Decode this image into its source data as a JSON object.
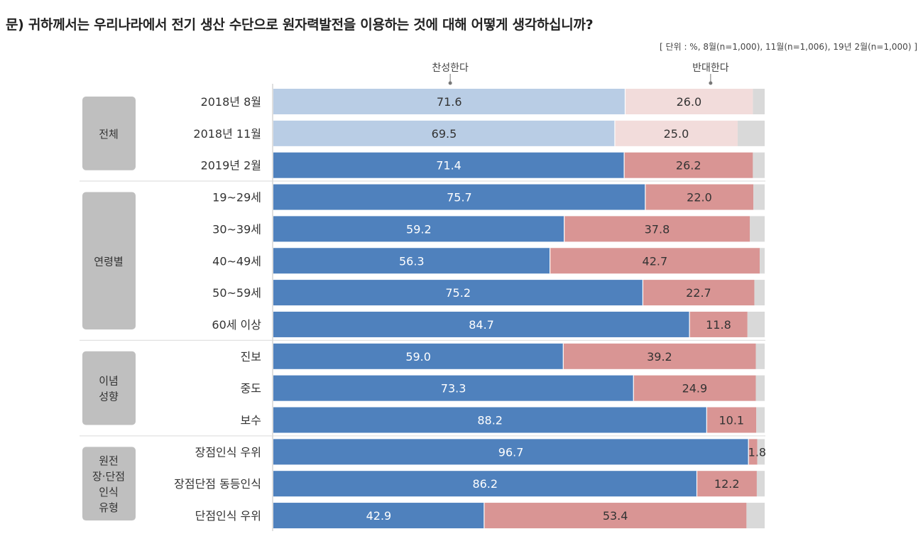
{
  "title": "문) 귀하께서는 우리나라에서 전기 생산 수단으로 원자력발전을 이용하는 것에 대해 어떻게 생각하십니까?",
  "unit_note": "[ 단위 : %, 8월(n=1,000), 11월(n=1,006), 19년 2월(n=1,000) ]",
  "colors": {
    "favor": "#4f81bd",
    "oppose": "#d99594",
    "favor_light": "#b9cde5",
    "oppose_light": "#f2dcdb",
    "remainder": "#d9d9d9",
    "group_box": "#bfbfbf"
  },
  "chart_data": {
    "type": "bar",
    "orientation": "horizontal",
    "stacked": true,
    "xlim": [
      0,
      100
    ],
    "legend": [
      "찬성한다",
      "반대한다"
    ],
    "groups": [
      {
        "label": [
          "전체"
        ],
        "rows": [
          {
            "label": "2018년 8월",
            "favor": 71.6,
            "oppose": 26.0,
            "light": true
          },
          {
            "label": "2018년 11월",
            "favor": 69.5,
            "oppose": 25.0,
            "light": true
          },
          {
            "label": "2019년 2월",
            "favor": 71.4,
            "oppose": 26.2,
            "light": false
          }
        ]
      },
      {
        "label": [
          "연령별"
        ],
        "rows": [
          {
            "label": "19~29세",
            "favor": 75.7,
            "oppose": 22.0,
            "light": false
          },
          {
            "label": "30~39세",
            "favor": 59.2,
            "oppose": 37.8,
            "light": false
          },
          {
            "label": "40~49세",
            "favor": 56.3,
            "oppose": 42.7,
            "light": false
          },
          {
            "label": "50~59세",
            "favor": 75.2,
            "oppose": 22.7,
            "light": false
          },
          {
            "label": "60세 이상",
            "favor": 84.7,
            "oppose": 11.8,
            "light": false
          }
        ]
      },
      {
        "label": [
          "이념",
          "성향"
        ],
        "rows": [
          {
            "label": "진보",
            "favor": 59.0,
            "oppose": 39.2,
            "light": false
          },
          {
            "label": "중도",
            "favor": 73.3,
            "oppose": 24.9,
            "light": false
          },
          {
            "label": "보수",
            "favor": 88.2,
            "oppose": 10.1,
            "light": false
          }
        ]
      },
      {
        "label": [
          "원전",
          "장·단점",
          "인식",
          "유형"
        ],
        "rows": [
          {
            "label": "장점인식 우위",
            "favor": 96.7,
            "oppose": 1.8,
            "light": false
          },
          {
            "label": "장점단점 동등인식",
            "favor": 86.2,
            "oppose": 12.2,
            "light": false
          },
          {
            "label": "단점인식 우위",
            "favor": 42.9,
            "oppose": 53.4,
            "light": false
          }
        ]
      }
    ]
  }
}
